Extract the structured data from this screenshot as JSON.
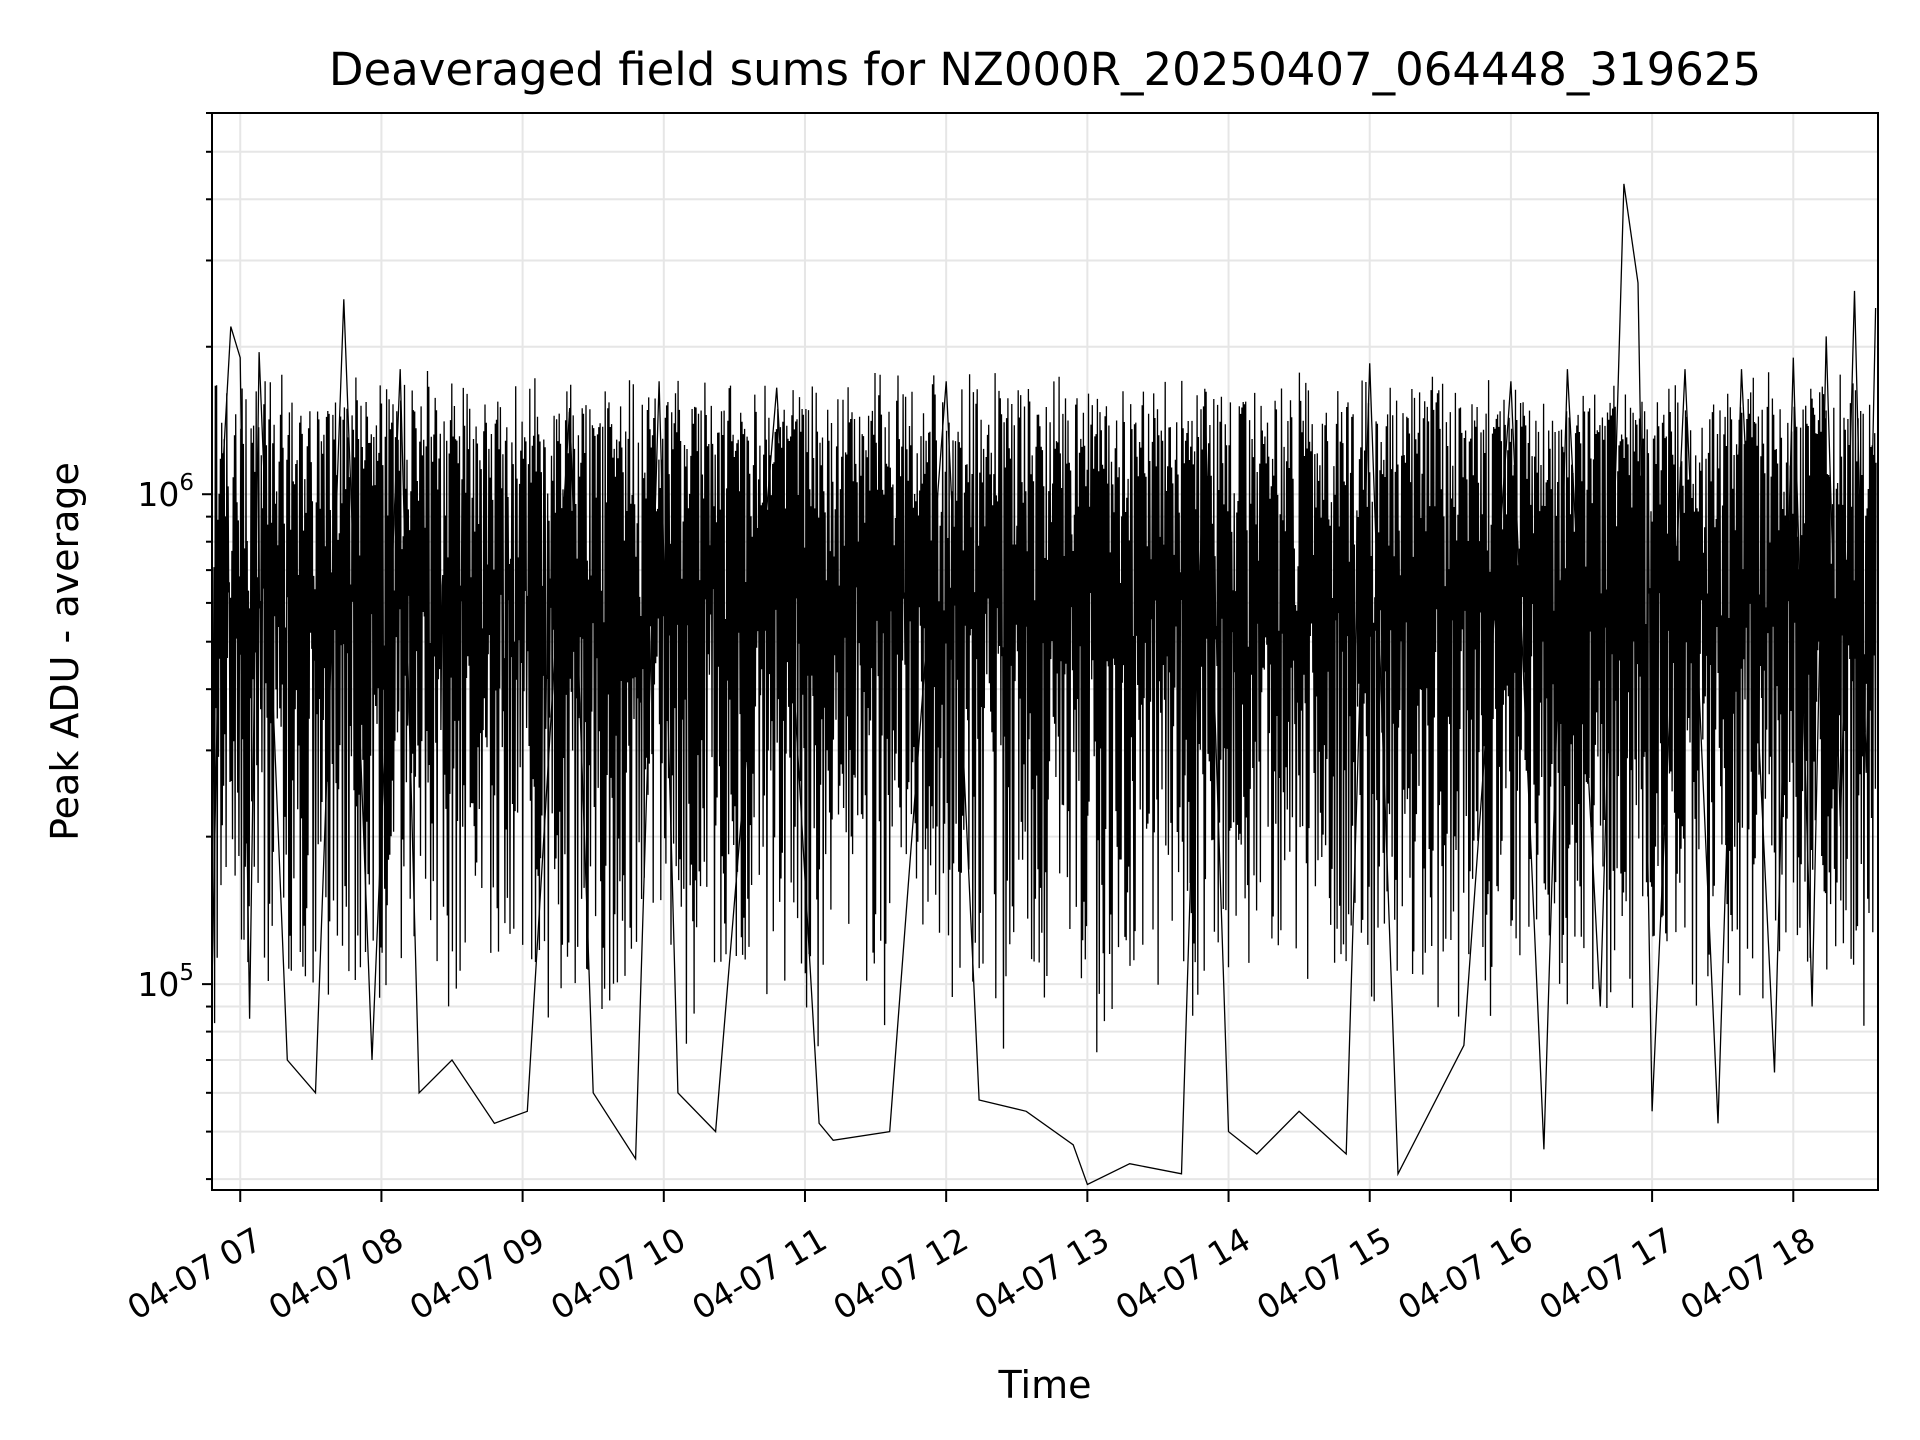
{
  "chart_data": {
    "type": "line",
    "title": "Deaveraged field sums for NZ000R_20250407_064448_319625",
    "xlabel": "Time",
    "ylabel": "Peak ADU - average",
    "y_scale": "log",
    "ylim": [
      38000,
      6000000
    ],
    "xlim": [
      "2025-04-07 06:48",
      "2025-04-07 18:36"
    ],
    "grid": true,
    "line_color": "#000000",
    "grid_color": "#e6e6e6",
    "x_ticks": [
      {
        "t": "2025-04-07 07:00",
        "label": "04-07 07"
      },
      {
        "t": "2025-04-07 08:00",
        "label": "04-07 08"
      },
      {
        "t": "2025-04-07 09:00",
        "label": "04-07 09"
      },
      {
        "t": "2025-04-07 10:00",
        "label": "04-07 10"
      },
      {
        "t": "2025-04-07 11:00",
        "label": "04-07 11"
      },
      {
        "t": "2025-04-07 12:00",
        "label": "04-07 12"
      },
      {
        "t": "2025-04-07 13:00",
        "label": "04-07 13"
      },
      {
        "t": "2025-04-07 14:00",
        "label": "04-07 14"
      },
      {
        "t": "2025-04-07 15:00",
        "label": "04-07 15"
      },
      {
        "t": "2025-04-07 16:00",
        "label": "04-07 16"
      },
      {
        "t": "2025-04-07 17:00",
        "label": "04-07 17"
      },
      {
        "t": "2025-04-07 18:00",
        "label": "04-07 18"
      }
    ],
    "y_ticks_major": [
      {
        "value": 100000,
        "base": "10",
        "exp": "5"
      },
      {
        "value": 1000000,
        "base": "10",
        "exp": "6"
      }
    ],
    "series": [
      {
        "points": [
          [
            "2025-04-07 06:48",
            100000
          ],
          [
            "2025-04-07 06:52",
            1000000
          ],
          [
            "2025-04-07 06:56",
            2200000
          ],
          [
            "2025-04-07 07:00",
            1900000
          ],
          [
            "2025-04-07 07:04",
            85000
          ],
          [
            "2025-04-07 07:08",
            1950000
          ],
          [
            "2025-04-07 07:20",
            70000
          ],
          [
            "2025-04-07 07:32",
            60000
          ],
          [
            "2025-04-07 07:44",
            2500000
          ],
          [
            "2025-04-07 07:56",
            70000
          ],
          [
            "2025-04-07 08:08",
            1800000
          ],
          [
            "2025-04-07 08:16",
            60000
          ],
          [
            "2025-04-07 08:30",
            70000
          ],
          [
            "2025-04-07 08:48",
            52000
          ],
          [
            "2025-04-07 09:02",
            55000
          ],
          [
            "2025-04-07 09:20",
            1500000
          ],
          [
            "2025-04-07 09:30",
            60000
          ],
          [
            "2025-04-07 09:48",
            44000
          ],
          [
            "2025-04-07 09:58",
            1700000
          ],
          [
            "2025-04-07 10:06",
            60000
          ],
          [
            "2025-04-07 10:22",
            50000
          ],
          [
            "2025-04-07 10:48",
            1650000
          ],
          [
            "2025-04-07 11:06",
            52000
          ],
          [
            "2025-04-07 11:12",
            48000
          ],
          [
            "2025-04-07 11:36",
            50000
          ],
          [
            "2025-04-07 12:00",
            1700000
          ],
          [
            "2025-04-07 12:14",
            58000
          ],
          [
            "2025-04-07 12:34",
            55000
          ],
          [
            "2025-04-07 12:54",
            47000
          ],
          [
            "2025-04-07 13:00",
            39000
          ],
          [
            "2025-04-07 13:18",
            43000
          ],
          [
            "2025-04-07 13:40",
            41000
          ],
          [
            "2025-04-07 13:50",
            1500000
          ],
          [
            "2025-04-07 14:00",
            50000
          ],
          [
            "2025-04-07 14:12",
            45000
          ],
          [
            "2025-04-07 14:30",
            55000
          ],
          [
            "2025-04-07 14:50",
            45000
          ],
          [
            "2025-04-07 15:00",
            1850000
          ],
          [
            "2025-04-07 15:12",
            41000
          ],
          [
            "2025-04-07 15:40",
            75000
          ],
          [
            "2025-04-07 16:00",
            1700000
          ],
          [
            "2025-04-07 16:14",
            46000
          ],
          [
            "2025-04-07 16:24",
            1800000
          ],
          [
            "2025-04-07 16:38",
            90000
          ],
          [
            "2025-04-07 16:48",
            4300000
          ],
          [
            "2025-04-07 16:54",
            2700000
          ],
          [
            "2025-04-07 17:00",
            55000
          ],
          [
            "2025-04-07 17:14",
            1800000
          ],
          [
            "2025-04-07 17:28",
            52000
          ],
          [
            "2025-04-07 17:38",
            1800000
          ],
          [
            "2025-04-07 17:52",
            66000
          ],
          [
            "2025-04-07 18:00",
            1900000
          ],
          [
            "2025-04-07 18:08",
            90000
          ],
          [
            "2025-04-07 18:14",
            2100000
          ],
          [
            "2025-04-07 18:20",
            210000
          ],
          [
            "2025-04-07 18:26",
            2600000
          ],
          [
            "2025-04-07 18:31",
            270000
          ],
          [
            "2025-04-07 18:35",
            2400000
          ]
        ]
      }
    ]
  }
}
